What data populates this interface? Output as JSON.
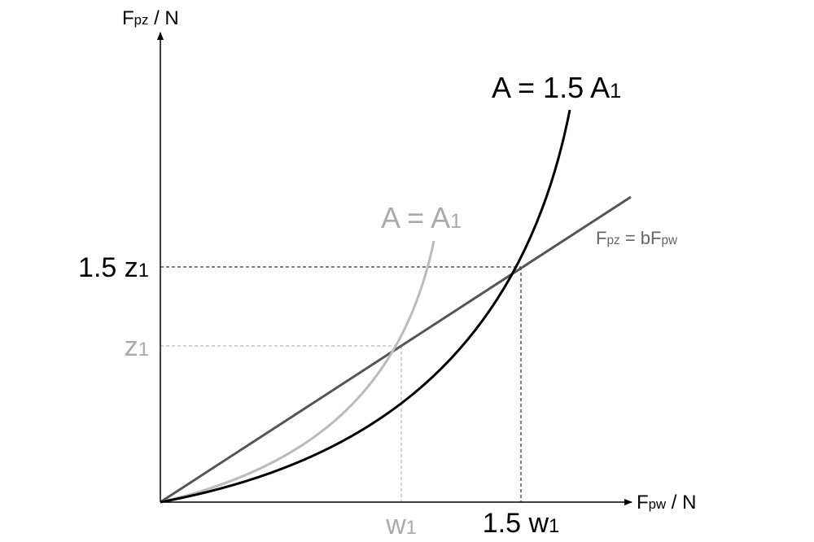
{
  "axes": {
    "y_label": {
      "main": "F",
      "sub": "pz",
      "rest": " / N"
    },
    "x_label": {
      "main": "F",
      "sub": "pw",
      "rest": " / N"
    }
  },
  "curves": [
    {
      "main": "A = A",
      "sub": "1"
    },
    {
      "main": "A = 1.5 A",
      "sub": "1"
    }
  ],
  "line_label": {
    "a": "F",
    "a_sub": "pz",
    "b": " = bF",
    "b_sub": "pw"
  },
  "y_marks": [
    {
      "main": "z",
      "sub": "1"
    },
    {
      "main": "1.5 z",
      "sub": "1"
    }
  ],
  "x_marks": [
    {
      "main": "w",
      "sub": "1"
    },
    {
      "main": "1.5 w",
      "sub": "1"
    }
  ]
}
